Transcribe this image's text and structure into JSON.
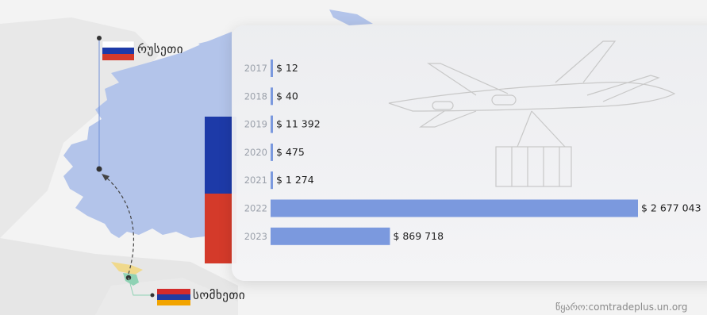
{
  "labels": {
    "russia": "რუსეთი",
    "armenia": "სომხეთი",
    "source": "წყარო:comtradeplus.un.org"
  },
  "colors": {
    "bar": "#7b99de",
    "map_land": "#b3c4ea",
    "flag_russia": [
      "#ffffff",
      "#1d3aa8",
      "#d43a2a"
    ],
    "flag_armenia": [
      "#d32b2b",
      "#1f3ca3",
      "#f2a400"
    ]
  },
  "chart_data": {
    "type": "bar",
    "orientation": "horizontal",
    "categories": [
      "2017",
      "2018",
      "2019",
      "2020",
      "2021",
      "2022",
      "2023"
    ],
    "values": [
      12,
      40,
      11392,
      475,
      1274,
      2677043,
      869718
    ],
    "value_labels": [
      "$ 12",
      "$ 40",
      "$ 11 392",
      "$ 475",
      "$ 1 274",
      "$ 2 677 043",
      "$ 869 718"
    ],
    "title": "",
    "xlabel": "",
    "ylabel": "",
    "xlim": [
      0,
      2677043
    ],
    "grid": false,
    "legend": "none"
  }
}
